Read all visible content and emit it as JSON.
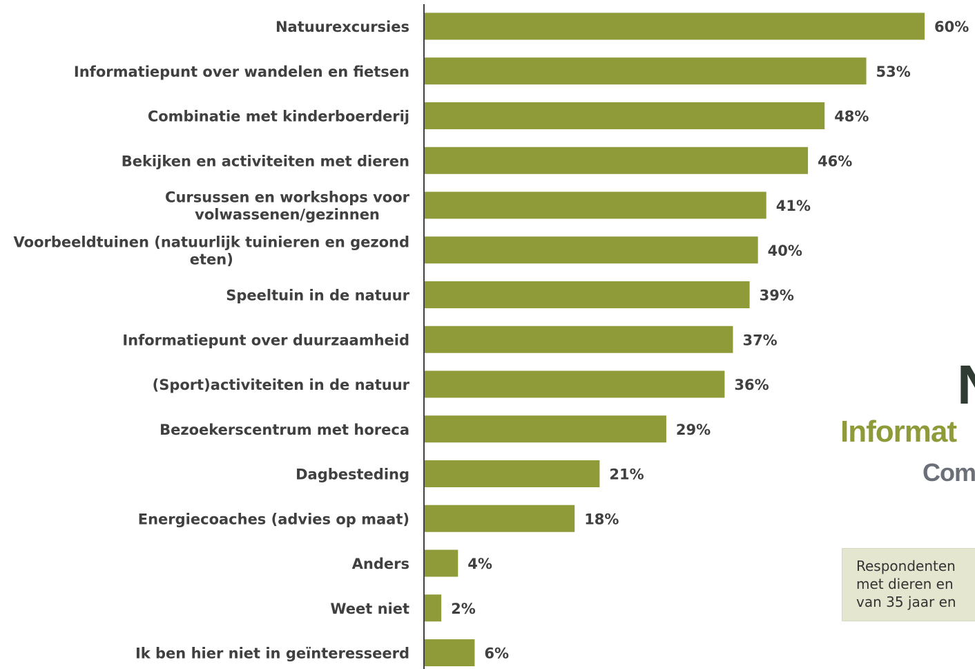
{
  "chart_data": {
    "type": "bar",
    "orientation": "horizontal",
    "categories": [
      [
        "Natuurexcursies"
      ],
      [
        "Informatiepunt over wandelen en fietsen"
      ],
      [
        "Combinatie met kinderboerderij"
      ],
      [
        "Bekijken en activiteiten met dieren"
      ],
      [
        "Cursussen en workshops voor",
        "volwassenen/gezinnen"
      ],
      [
        "Voorbeeldtuinen (natuurlijk tuinieren en gezond",
        "eten)"
      ],
      [
        "Speeltuin in de natuur"
      ],
      [
        "Informatiepunt over duurzaamheid"
      ],
      [
        "(Sport)activiteiten in de natuur"
      ],
      [
        "Bezoekerscentrum met horeca"
      ],
      [
        "Dagbesteding"
      ],
      [
        "Energiecoaches (advies op maat)"
      ],
      [
        "Anders"
      ],
      [
        "Weet niet"
      ],
      [
        "Ik ben hier niet in geïnteresseerd"
      ]
    ],
    "values": [
      60,
      53,
      48,
      46,
      41,
      40,
      39,
      37,
      36,
      29,
      21,
      18,
      4,
      2,
      6
    ],
    "value_labels": [
      "60%",
      "53%",
      "48%",
      "46%",
      "41%",
      "40%",
      "39%",
      "37%",
      "36%",
      "29%",
      "21%",
      "18%",
      "4%",
      "2%",
      "6%"
    ],
    "unit": "%",
    "xlim": [
      0,
      60
    ],
    "grid": false,
    "bar_color": "#8f9a38"
  },
  "side_panel": {
    "big_letter": "N",
    "green_title": "Informat",
    "gray_title": "Com",
    "note_lines": [
      "Respondenten",
      "met dieren en",
      "van 35 jaar en"
    ]
  }
}
